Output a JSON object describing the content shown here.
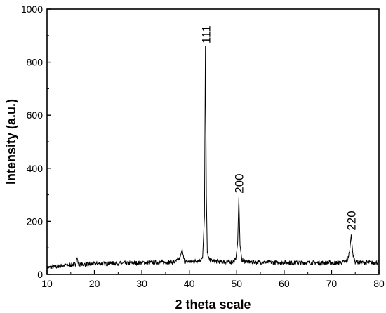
{
  "chart_data": {
    "type": "line",
    "xlabel": "2 theta scale",
    "ylabel": "Intensity (a.u.)",
    "xlim": [
      10,
      80
    ],
    "ylim": [
      0,
      1000
    ],
    "x_ticks": [
      10,
      20,
      30,
      40,
      50,
      60,
      70,
      80
    ],
    "y_ticks": [
      0,
      200,
      400,
      600,
      800,
      1000
    ],
    "grid": false,
    "legend": "none",
    "line_color": "#000000",
    "series": [
      {
        "x": [
          10,
          11,
          12,
          13,
          14,
          15,
          16,
          16.3,
          16.6,
          17,
          18,
          20,
          22,
          24,
          26,
          28,
          30,
          32,
          34,
          36,
          37,
          38,
          38.5,
          38.7,
          39,
          40,
          41,
          42,
          42.8,
          43.2,
          43.4,
          43.6,
          43.8,
          44.2,
          45,
          46,
          47,
          48,
          49,
          49.8,
          50.2,
          50.45,
          50.7,
          51.1,
          52,
          54,
          56,
          58,
          60,
          62,
          64,
          66,
          68,
          70,
          72,
          73.3,
          73.8,
          74.15,
          74.5,
          75,
          76,
          78,
          80
        ],
        "y": [
          25,
          28,
          30,
          33,
          35,
          36,
          38,
          65,
          40,
          37,
          38,
          40,
          41,
          42,
          42,
          43,
          44,
          45,
          45,
          46,
          47,
          60,
          95,
          70,
          48,
          48,
          49,
          52,
          60,
          220,
          860,
          300,
          80,
          55,
          50,
          48,
          48,
          47,
          47,
          55,
          120,
          290,
          110,
          55,
          48,
          46,
          46,
          45,
          45,
          44,
          44,
          44,
          44,
          44,
          44,
          50,
          85,
          150,
          75,
          48,
          45,
          44,
          45
        ]
      }
    ],
    "annotations": [
      {
        "text": "111",
        "x": 43.5,
        "y": 870
      },
      {
        "text": "200",
        "x": 50.45,
        "y": 305
      },
      {
        "text": "220",
        "x": 74.15,
        "y": 165
      }
    ]
  }
}
